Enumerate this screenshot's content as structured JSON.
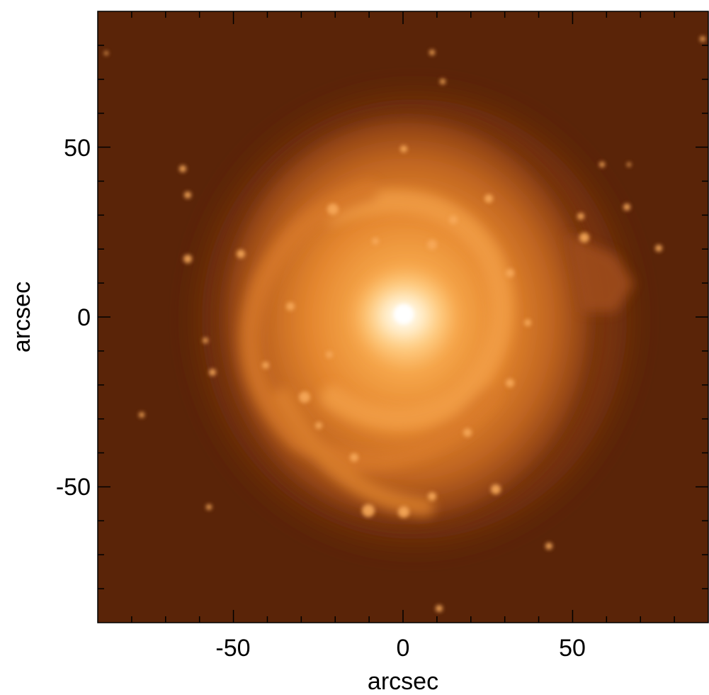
{
  "image": {
    "subject": "galaxy-image",
    "colormap": [
      "#5a2408",
      "#8a3f12",
      "#c76a1e",
      "#f19a3c",
      "#ffd088",
      "#fff8ea"
    ]
  },
  "axes": {
    "xlabel": "arcsec",
    "ylabel": "arcsec",
    "xlim": [
      -90,
      90
    ],
    "ylim": [
      -90,
      90
    ],
    "x_ticks": [
      {
        "value": -50,
        "label": "-50"
      },
      {
        "value": 0,
        "label": "0"
      },
      {
        "value": 50,
        "label": "50"
      }
    ],
    "y_ticks": [
      {
        "value": 50,
        "label": "50"
      },
      {
        "value": 0,
        "label": "0"
      },
      {
        "value": -50,
        "label": "-50"
      }
    ],
    "minor_tick_step": 10
  },
  "frame_color": "#000000"
}
